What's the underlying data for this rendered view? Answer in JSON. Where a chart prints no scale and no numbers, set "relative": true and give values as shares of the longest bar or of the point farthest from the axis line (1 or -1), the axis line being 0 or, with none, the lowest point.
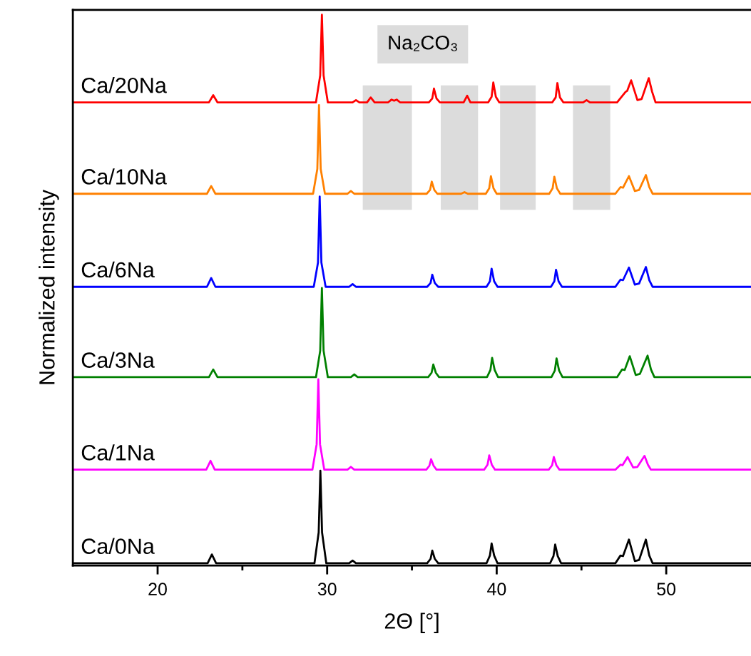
{
  "chart_data": {
    "type": "line",
    "relative": true,
    "xlabel": "2Θ [°]",
    "ylabel": "Normalized intensity",
    "xlim": [
      15,
      55
    ],
    "xticks": [
      20,
      {
        "value": 25,
        "label": null
      },
      30,
      {
        "value": 35,
        "label": null
      },
      40,
      {
        "value": 45,
        "label": null
      },
      50
    ],
    "tick_labels": "x",
    "grid": false,
    "marker": "none",
    "line_style": "solid",
    "bands": [
      {
        "axis": "x",
        "from": 32.1,
        "to": 35.0,
        "color": "#dcdcdc"
      },
      {
        "axis": "x",
        "from": 36.7,
        "to": 38.9,
        "color": "#dcdcdc"
      },
      {
        "axis": "x",
        "from": 40.2,
        "to": 42.3,
        "color": "#dcdcdc"
      },
      {
        "axis": "x",
        "from": 44.5,
        "to": 46.7,
        "color": "#dcdcdc"
      }
    ],
    "annotations": [
      "Na₂CO₃"
    ],
    "series": [
      {
        "name": "Ca/0Na",
        "color": "#000000",
        "x": [
          15,
          22.95,
          23.2,
          23.45,
          29.25,
          29.5,
          29.6,
          29.7,
          29.95,
          31.3,
          31.5,
          31.7,
          35.9,
          36.1,
          36.2,
          36.35,
          36.55,
          39.4,
          39.6,
          39.7,
          39.85,
          40.05,
          43.15,
          43.35,
          43.45,
          43.6,
          43.8,
          47.0,
          47.3,
          47.45,
          47.8,
          48.15,
          48.4,
          48.8,
          49.0,
          49.2,
          55
        ],
        "values": [
          0.004,
          0.004,
          0.02,
          0.004,
          0.004,
          0.06,
          0.172,
          0.06,
          0.004,
          0.004,
          0.009,
          0.004,
          0.004,
          0.012,
          0.027,
          0.012,
          0.004,
          0.004,
          0.018,
          0.04,
          0.018,
          0.004,
          0.004,
          0.017,
          0.038,
          0.017,
          0.004,
          0.004,
          0.018,
          0.017,
          0.047,
          0.008,
          0.01,
          0.047,
          0.018,
          0.004,
          0.004
        ]
      },
      {
        "name": "Ca/1Na",
        "color": "#ff00ff",
        "x": [
          15,
          22.87,
          23.12,
          23.37,
          29.13,
          29.38,
          29.48,
          29.58,
          29.83,
          31.2,
          31.4,
          31.6,
          35.85,
          36.03,
          36.13,
          36.28,
          36.45,
          39.26,
          39.46,
          39.56,
          39.71,
          39.9,
          43.07,
          43.27,
          43.37,
          43.52,
          43.7,
          47.0,
          47.3,
          47.42,
          47.72,
          48.05,
          48.3,
          48.72,
          48.92,
          49.1,
          55
        ],
        "values": [
          0.174,
          0.174,
          0.19,
          0.174,
          0.174,
          0.22,
          0.338,
          0.22,
          0.174,
          0.174,
          0.179,
          0.174,
          0.174,
          0.181,
          0.193,
          0.181,
          0.174,
          0.174,
          0.183,
          0.2,
          0.183,
          0.174,
          0.174,
          0.182,
          0.197,
          0.182,
          0.174,
          0.174,
          0.183,
          0.182,
          0.197,
          0.178,
          0.179,
          0.199,
          0.183,
          0.174,
          0.174
        ]
      },
      {
        "name": "Ca/3Na",
        "color": "#008000",
        "x": [
          15,
          23.03,
          23.28,
          23.53,
          29.34,
          29.59,
          29.69,
          29.79,
          30.04,
          31.4,
          31.6,
          31.8,
          35.96,
          36.16,
          36.26,
          36.41,
          36.6,
          39.43,
          39.63,
          39.73,
          39.88,
          40.08,
          43.23,
          43.43,
          43.53,
          43.68,
          43.88,
          47.1,
          47.4,
          47.55,
          47.85,
          48.2,
          48.45,
          48.9,
          49.1,
          49.3,
          55
        ],
        "values": [
          0.342,
          0.342,
          0.356,
          0.342,
          0.342,
          0.39,
          0.504,
          0.39,
          0.342,
          0.342,
          0.347,
          0.342,
          0.342,
          0.35,
          0.365,
          0.35,
          0.342,
          0.342,
          0.355,
          0.377,
          0.355,
          0.342,
          0.342,
          0.354,
          0.376,
          0.354,
          0.342,
          0.342,
          0.356,
          0.355,
          0.38,
          0.346,
          0.348,
          0.381,
          0.356,
          0.342,
          0.342
        ]
      },
      {
        "name": "Ca/6Na",
        "color": "#0000ff",
        "x": [
          15,
          22.91,
          23.16,
          23.41,
          29.21,
          29.46,
          29.56,
          29.66,
          29.91,
          31.3,
          31.5,
          31.7,
          35.9,
          36.1,
          36.2,
          36.35,
          36.55,
          39.4,
          39.6,
          39.7,
          39.85,
          40.05,
          43.2,
          43.4,
          43.5,
          43.65,
          43.85,
          47.0,
          47.3,
          47.45,
          47.8,
          48.15,
          48.4,
          48.8,
          49.0,
          49.2,
          55
        ],
        "values": [
          0.506,
          0.506,
          0.522,
          0.506,
          0.506,
          0.55,
          0.67,
          0.55,
          0.506,
          0.506,
          0.511,
          0.506,
          0.506,
          0.513,
          0.528,
          0.513,
          0.506,
          0.506,
          0.516,
          0.539,
          0.516,
          0.506,
          0.506,
          0.516,
          0.537,
          0.516,
          0.506,
          0.506,
          0.519,
          0.518,
          0.541,
          0.51,
          0.512,
          0.542,
          0.518,
          0.506,
          0.506
        ]
      },
      {
        "name": "Ca/10Na",
        "color": "#ff8000",
        "x": [
          15,
          22.91,
          23.16,
          23.41,
          29.17,
          29.42,
          29.52,
          29.62,
          29.87,
          31.2,
          31.4,
          31.6,
          35.87,
          36.07,
          36.17,
          36.32,
          36.5,
          37.9,
          38.1,
          38.3,
          39.36,
          39.56,
          39.66,
          39.81,
          40.0,
          43.1,
          43.3,
          43.4,
          43.55,
          43.75,
          47.0,
          47.3,
          47.45,
          47.8,
          48.15,
          48.4,
          48.8,
          49.0,
          49.2,
          55
        ],
        "values": [
          0.675,
          0.675,
          0.689,
          0.675,
          0.675,
          0.72,
          0.836,
          0.72,
          0.675,
          0.675,
          0.68,
          0.675,
          0.675,
          0.682,
          0.697,
          0.682,
          0.675,
          0.675,
          0.678,
          0.675,
          0.675,
          0.685,
          0.707,
          0.685,
          0.675,
          0.675,
          0.685,
          0.706,
          0.685,
          0.675,
          0.675,
          0.687,
          0.686,
          0.707,
          0.68,
          0.682,
          0.709,
          0.687,
          0.675,
          0.675
        ]
      },
      {
        "name": "Ca/20Na",
        "color": "#ff0000",
        "x": [
          15,
          23.03,
          23.28,
          23.53,
          29.34,
          29.59,
          29.69,
          29.79,
          30.04,
          31.5,
          31.7,
          31.9,
          32.35,
          32.57,
          32.8,
          33.6,
          33.8,
          33.95,
          34.1,
          34.3,
          36.0,
          36.2,
          36.3,
          36.45,
          36.65,
          38.05,
          38.26,
          38.45,
          39.5,
          39.7,
          39.8,
          39.95,
          40.15,
          43.28,
          43.48,
          43.58,
          43.73,
          43.93,
          45.1,
          45.3,
          45.5,
          47.1,
          47.6,
          47.7,
          47.93,
          48.3,
          48.55,
          48.97,
          49.17,
          49.37,
          55
        ],
        "values": [
          0.841,
          0.841,
          0.854,
          0.841,
          0.841,
          0.89,
          1.0,
          0.89,
          0.841,
          0.841,
          0.845,
          0.841,
          0.841,
          0.85,
          0.841,
          0.841,
          0.846,
          0.844,
          0.846,
          0.841,
          0.841,
          0.848,
          0.866,
          0.848,
          0.841,
          0.841,
          0.853,
          0.841,
          0.841,
          0.851,
          0.877,
          0.851,
          0.841,
          0.841,
          0.85,
          0.876,
          0.85,
          0.841,
          0.841,
          0.845,
          0.841,
          0.841,
          0.86,
          0.862,
          0.881,
          0.845,
          0.847,
          0.885,
          0.86,
          0.841,
          0.841
        ]
      }
    ]
  }
}
